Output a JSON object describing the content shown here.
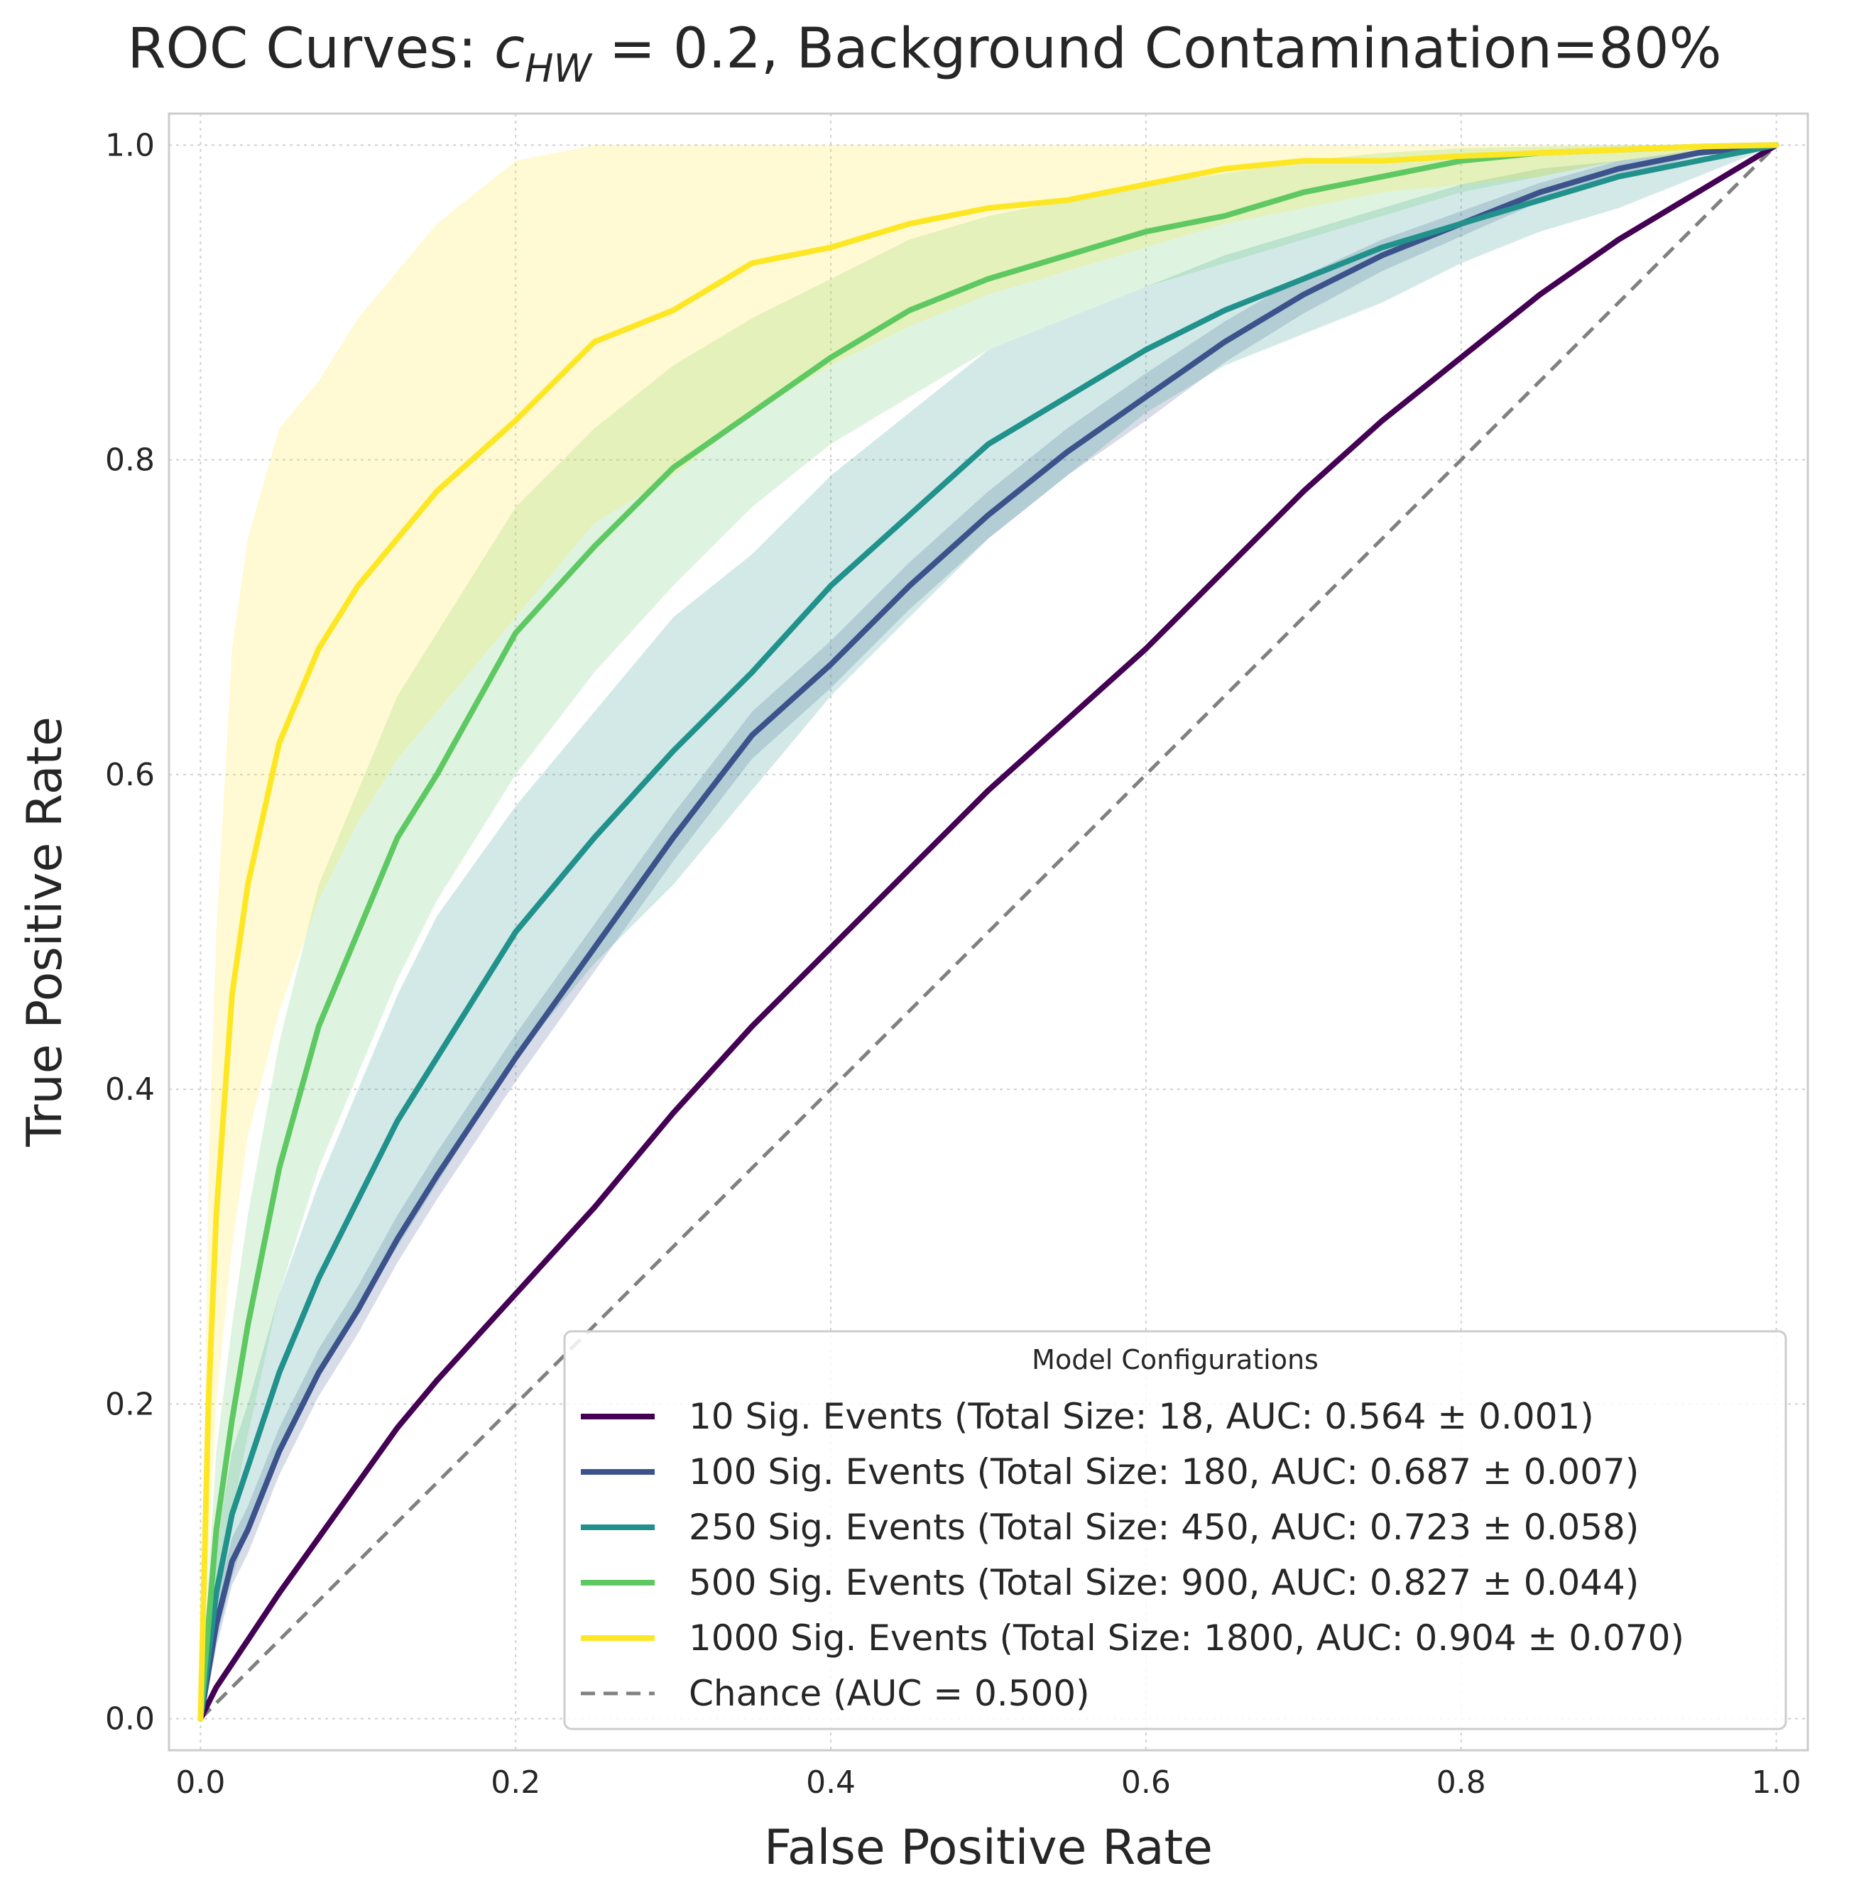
{
  "chart_data": {
    "type": "line",
    "title": "ROC Curves: c_HW = 0.2, Background Contamination=80%",
    "title_parts": {
      "prefix": "ROC Curves: ",
      "var": "c",
      "sub": "HW",
      "suffix": " = 0.2, Background Contamination=80%"
    },
    "xlabel": "False Positive Rate",
    "ylabel": "True Positive Rate",
    "xlim": [
      -0.02,
      1.02
    ],
    "ylim": [
      -0.02,
      1.02
    ],
    "xticks": [
      0.0,
      0.2,
      0.4,
      0.6,
      0.8,
      1.0
    ],
    "yticks": [
      0.0,
      0.2,
      0.4,
      0.6,
      0.8,
      1.0
    ],
    "xtick_labels": [
      "0.0",
      "0.2",
      "0.4",
      "0.6",
      "0.8",
      "1.0"
    ],
    "ytick_labels": [
      "0.0",
      "0.2",
      "0.4",
      "0.6",
      "0.8",
      "1.0"
    ],
    "grid": true,
    "legend": {
      "title": "Model Configurations",
      "position": "lower right"
    },
    "x": [
      0,
      0.005,
      0.01,
      0.02,
      0.03,
      0.05,
      0.075,
      0.1,
      0.125,
      0.15,
      0.2,
      0.25,
      0.3,
      0.35,
      0.4,
      0.45,
      0.5,
      0.55,
      0.6,
      0.65,
      0.7,
      0.75,
      0.8,
      0.85,
      0.9,
      0.95,
      1.0
    ],
    "series": [
      {
        "name": "10 Sig. Events",
        "label": "10 Sig. Events (Total Size: 18, AUC: 0.564 ± 0.001)",
        "color": "#440154",
        "y": [
          0,
          0.01,
          0.02,
          0.035,
          0.05,
          0.08,
          0.115,
          0.15,
          0.185,
          0.215,
          0.27,
          0.325,
          0.385,
          0.44,
          0.49,
          0.54,
          0.59,
          0.635,
          0.68,
          0.73,
          0.78,
          0.825,
          0.865,
          0.905,
          0.94,
          0.97,
          1.0
        ],
        "y_lower": [
          0,
          0.009,
          0.019,
          0.034,
          0.049,
          0.079,
          0.114,
          0.149,
          0.184,
          0.214,
          0.269,
          0.324,
          0.384,
          0.439,
          0.489,
          0.539,
          0.589,
          0.634,
          0.679,
          0.729,
          0.779,
          0.824,
          0.864,
          0.904,
          0.939,
          0.969,
          1.0
        ],
        "y_upper": [
          0,
          0.011,
          0.021,
          0.036,
          0.051,
          0.081,
          0.116,
          0.151,
          0.186,
          0.216,
          0.271,
          0.326,
          0.386,
          0.441,
          0.491,
          0.541,
          0.591,
          0.636,
          0.681,
          0.731,
          0.781,
          0.826,
          0.866,
          0.906,
          0.941,
          0.971,
          1.0
        ]
      },
      {
        "name": "100 Sig. Events",
        "label": "100 Sig. Events (Total Size: 180, AUC: 0.687 ± 0.007)",
        "color": "#3b528b",
        "y": [
          0,
          0.03,
          0.06,
          0.1,
          0.12,
          0.17,
          0.22,
          0.26,
          0.305,
          0.345,
          0.42,
          0.49,
          0.56,
          0.625,
          0.67,
          0.72,
          0.765,
          0.805,
          0.84,
          0.875,
          0.905,
          0.93,
          0.95,
          0.97,
          0.985,
          0.995,
          1.0
        ],
        "y_lower": [
          0,
          0.02,
          0.045,
          0.085,
          0.105,
          0.155,
          0.205,
          0.245,
          0.29,
          0.33,
          0.405,
          0.475,
          0.545,
          0.61,
          0.655,
          0.705,
          0.75,
          0.79,
          0.825,
          0.862,
          0.893,
          0.92,
          0.942,
          0.964,
          0.98,
          0.993,
          1.0
        ],
        "y_upper": [
          0,
          0.04,
          0.075,
          0.115,
          0.135,
          0.185,
          0.235,
          0.275,
          0.32,
          0.36,
          0.435,
          0.505,
          0.575,
          0.64,
          0.685,
          0.735,
          0.78,
          0.82,
          0.855,
          0.888,
          0.917,
          0.94,
          0.958,
          0.976,
          0.99,
          0.997,
          1.0
        ]
      },
      {
        "name": "250 Sig. Events",
        "label": "250 Sig. Events (Total Size: 450, AUC: 0.723 ± 0.058)",
        "color": "#21918c",
        "y": [
          0,
          0.04,
          0.08,
          0.13,
          0.16,
          0.22,
          0.28,
          0.33,
          0.38,
          0.42,
          0.5,
          0.56,
          0.615,
          0.665,
          0.72,
          0.765,
          0.81,
          0.84,
          0.87,
          0.895,
          0.915,
          0.935,
          0.95,
          0.965,
          0.98,
          0.99,
          1.0
        ],
        "y_lower": [
          0,
          0.02,
          0.05,
          0.09,
          0.12,
          0.17,
          0.22,
          0.26,
          0.3,
          0.34,
          0.42,
          0.48,
          0.53,
          0.59,
          0.65,
          0.7,
          0.75,
          0.79,
          0.83,
          0.86,
          0.88,
          0.9,
          0.925,
          0.945,
          0.96,
          0.98,
          1.0
        ],
        "y_upper": [
          0,
          0.06,
          0.11,
          0.17,
          0.2,
          0.27,
          0.34,
          0.4,
          0.46,
          0.51,
          0.58,
          0.64,
          0.7,
          0.74,
          0.79,
          0.83,
          0.87,
          0.89,
          0.91,
          0.93,
          0.945,
          0.96,
          0.975,
          0.985,
          0.99,
          0.995,
          1.0
        ]
      },
      {
        "name": "500 Sig. Events",
        "label": "500 Sig. Events (Total Size: 900, AUC: 0.827 ± 0.044)",
        "color": "#5ec962",
        "y": [
          0,
          0.06,
          0.12,
          0.19,
          0.25,
          0.35,
          0.44,
          0.5,
          0.56,
          0.6,
          0.69,
          0.745,
          0.795,
          0.83,
          0.865,
          0.895,
          0.915,
          0.93,
          0.945,
          0.955,
          0.97,
          0.98,
          0.99,
          0.995,
          0.997,
          0.999,
          1.0
        ],
        "y_lower": [
          0,
          0.03,
          0.07,
          0.13,
          0.18,
          0.27,
          0.35,
          0.41,
          0.47,
          0.52,
          0.6,
          0.665,
          0.72,
          0.77,
          0.81,
          0.84,
          0.87,
          0.89,
          0.91,
          0.925,
          0.94,
          0.955,
          0.97,
          0.98,
          0.99,
          0.995,
          1.0
        ],
        "y_upper": [
          0,
          0.09,
          0.17,
          0.25,
          0.32,
          0.43,
          0.53,
          0.59,
          0.65,
          0.69,
          0.77,
          0.82,
          0.86,
          0.89,
          0.915,
          0.94,
          0.955,
          0.965,
          0.975,
          0.982,
          0.99,
          0.995,
          0.998,
          0.999,
          1.0,
          1.0,
          1.0
        ]
      },
      {
        "name": "1000 Sig. Events",
        "label": "1000 Sig. Events (Total Size: 1800, AUC: 0.904 ± 0.070)",
        "color": "#fde725",
        "y": [
          0,
          0.2,
          0.32,
          0.46,
          0.53,
          0.62,
          0.68,
          0.72,
          0.75,
          0.78,
          0.825,
          0.875,
          0.895,
          0.925,
          0.935,
          0.95,
          0.96,
          0.965,
          0.975,
          0.985,
          0.99,
          0.99,
          0.993,
          0.995,
          0.997,
          0.999,
          1.0
        ],
        "y_lower": [
          0,
          0.1,
          0.2,
          0.3,
          0.37,
          0.45,
          0.52,
          0.57,
          0.61,
          0.64,
          0.7,
          0.76,
          0.79,
          0.83,
          0.86,
          0.885,
          0.905,
          0.92,
          0.935,
          0.95,
          0.96,
          0.97,
          0.975,
          0.98,
          0.99,
          0.995,
          1.0
        ],
        "y_upper": [
          0,
          0.35,
          0.5,
          0.68,
          0.75,
          0.82,
          0.85,
          0.89,
          0.92,
          0.95,
          0.99,
          1.0,
          1.0,
          1.0,
          1.0,
          1.0,
          1.0,
          1.0,
          1.0,
          1.0,
          1.0,
          1.0,
          1.0,
          1.0,
          1.0,
          1.0,
          1.0
        ]
      }
    ],
    "reference_line": {
      "name": "Chance",
      "label": "Chance (AUC = 0.500)",
      "color": "#808080",
      "x": [
        0,
        1
      ],
      "y": [
        0,
        1
      ],
      "style": "dashed"
    }
  }
}
